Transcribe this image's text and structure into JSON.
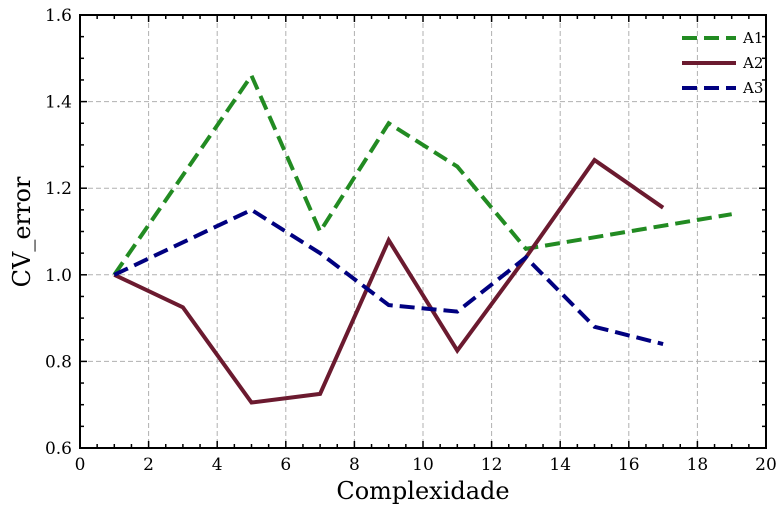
{
  "chart_data": {
    "type": "line",
    "xlabel": "Complexidade",
    "ylabel": "CV_error",
    "xlim": [
      0,
      20
    ],
    "ylim": [
      0.6,
      1.6
    ],
    "xticks": [
      0,
      2,
      4,
      6,
      8,
      10,
      12,
      14,
      16,
      18,
      20
    ],
    "yticks": [
      0.6,
      0.8,
      1.0,
      1.2,
      1.4,
      1.6
    ],
    "xtick_labels": [
      "0",
      "2",
      "4",
      "6",
      "8",
      "10",
      "12",
      "14",
      "16",
      "18",
      "20"
    ],
    "ytick_labels": [
      "0.6",
      "0.8",
      "1.0",
      "1.2",
      "1.4",
      "1.6"
    ],
    "grid": true,
    "legend_position": "top-right",
    "series": [
      {
        "name": "A1",
        "color": "#228b22",
        "style": "dashed",
        "x": [
          1,
          5,
          7,
          9,
          11,
          13,
          19
        ],
        "y": [
          1.0,
          1.46,
          1.1,
          1.35,
          1.25,
          1.06,
          1.14
        ]
      },
      {
        "name": "A2",
        "color": "#6b1a2f",
        "style": "solid",
        "x": [
          1,
          3,
          5,
          7,
          9,
          11,
          13,
          15,
          17
        ],
        "y": [
          1.0,
          0.925,
          0.705,
          0.725,
          1.08,
          0.825,
          1.04,
          1.265,
          1.155
        ]
      },
      {
        "name": "A3",
        "color": "#000080",
        "style": "dashed",
        "x": [
          1,
          5,
          7,
          9,
          11,
          13,
          15,
          17
        ],
        "y": [
          1.0,
          1.15,
          1.05,
          0.93,
          0.915,
          1.04,
          0.88,
          0.84
        ]
      }
    ]
  }
}
